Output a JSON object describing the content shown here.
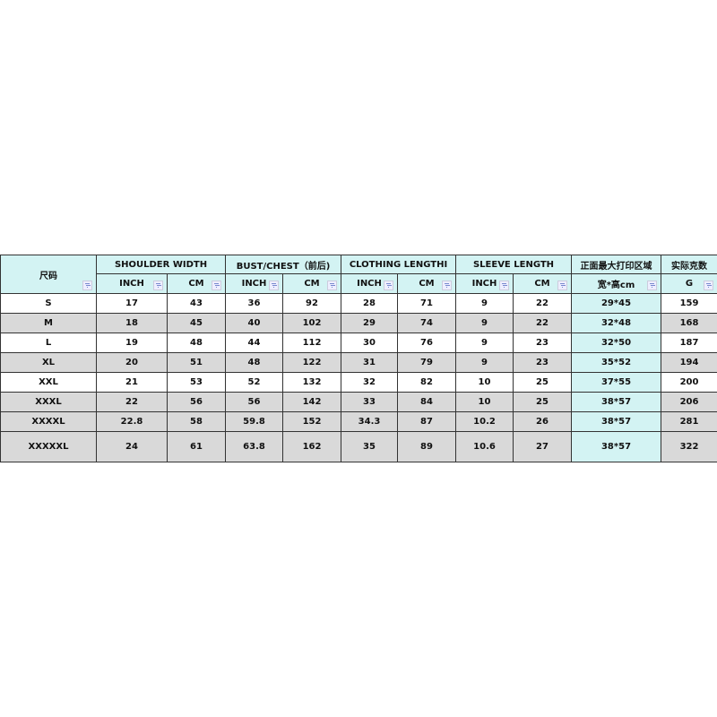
{
  "header": {
    "size_label": "尺码",
    "groups": [
      "SHOULDER WIDTH",
      "BUST/CHEST（前后)",
      "CLOTHING LENGTHI",
      "SLEEVE LENGTH",
      "正面最大打印区域",
      "实际克数"
    ],
    "units": [
      "INCH",
      "CM",
      "INCH",
      "CM",
      "INCH",
      "CM",
      "INCH",
      "CM",
      "宽*高cm",
      "G"
    ]
  },
  "rows": [
    [
      "S",
      "17",
      "43",
      "36",
      "92",
      "28",
      "71",
      "9",
      "22",
      "29*45",
      "159"
    ],
    [
      "M",
      "18",
      "45",
      "40",
      "102",
      "29",
      "74",
      "9",
      "22",
      "32*48",
      "168"
    ],
    [
      "L",
      "19",
      "48",
      "44",
      "112",
      "30",
      "76",
      "9",
      "23",
      "32*50",
      "187"
    ],
    [
      "XL",
      "20",
      "51",
      "48",
      "122",
      "31",
      "79",
      "9",
      "23",
      "35*52",
      "194"
    ],
    [
      "XXL",
      "21",
      "53",
      "52",
      "132",
      "32",
      "82",
      "10",
      "25",
      "37*55",
      "200"
    ],
    [
      "XXXL",
      "22",
      "56",
      "56",
      "142",
      "33",
      "84",
      "10",
      "25",
      "38*57",
      "206"
    ],
    [
      "XXXXL",
      "22.8",
      "58",
      "59.8",
      "152",
      "34.3",
      "87",
      "10.2",
      "26",
      "38*57",
      "281"
    ],
    [
      "XXXXXL",
      "24",
      "61",
      "63.8",
      "162",
      "35",
      "89",
      "10.6",
      "27",
      "38*57",
      "322"
    ]
  ],
  "colors": {
    "header_bg": "#d3f3f3",
    "alt_row_bg": "#d9d9d9",
    "print_col_bg": "#d3f3f3"
  }
}
